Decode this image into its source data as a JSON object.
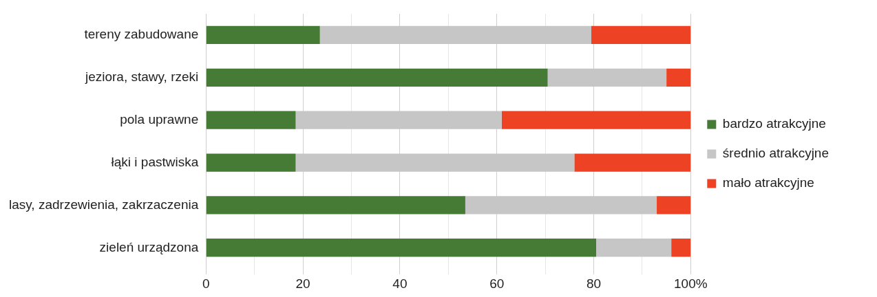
{
  "chart_data": {
    "type": "bar",
    "orientation": "horizontal",
    "stacked": true,
    "categories": [
      "tereny zabudowane",
      "jeziora, stawy, rzeki",
      "pola uprawne",
      "łąki i pastwiska",
      "lasy, zadrzewienia, zakrzaczenia",
      "zieleń urządzona"
    ],
    "series": [
      {
        "name": "bardzo atrakcyjne",
        "color": "#467b35",
        "values": [
          23.5,
          70.5,
          18.5,
          18.5,
          53.5,
          80.5
        ]
      },
      {
        "name": "średnio atrakcyjne",
        "color": "#c6c6c6",
        "values": [
          56,
          24.5,
          42.5,
          57.5,
          39.5,
          15.5
        ]
      },
      {
        "name": "mało atrakcyjne",
        "color": "#ee4224",
        "values": [
          20.5,
          5,
          39,
          24,
          7,
          4
        ]
      }
    ],
    "xlim": [
      0,
      100
    ],
    "xticks": [
      0,
      {
        "value": 10,
        "label": null
      },
      20,
      {
        "value": 30,
        "label": null
      },
      40,
      {
        "value": 50,
        "label": null
      },
      60,
      {
        "value": 70,
        "label": null
      },
      80,
      {
        "value": 90,
        "label": null
      },
      {
        "value": 100,
        "label": "100%"
      }
    ],
    "grid": "x",
    "legend": "right"
  }
}
